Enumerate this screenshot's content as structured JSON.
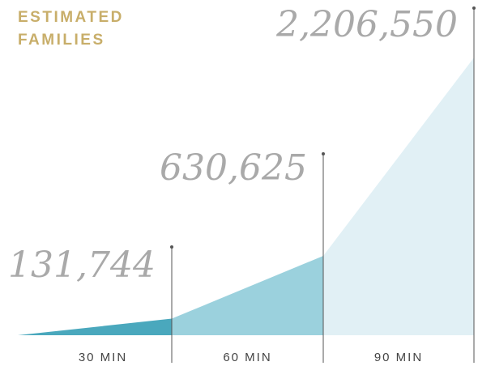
{
  "chart_data": {
    "type": "area",
    "title_lines": [
      "ESTIMATED",
      "FAMILIES"
    ],
    "categories": [
      "30 MIN",
      "60 MIN",
      "90 MIN"
    ],
    "values": [
      131744,
      630625,
      2206550
    ],
    "value_labels": [
      "131,744",
      "630,625",
      "2,206,550"
    ],
    "ylim": [
      0,
      2600000
    ],
    "legend": "none",
    "grid": false
  },
  "colors": {
    "band_30": "#4aa8bd",
    "band_60": "#9bd1dd",
    "band_90": "#e1f0f5",
    "title": "#c8ae6a",
    "value_labels": "#a9a9a9",
    "ticks": "#444444",
    "markers": "#555555"
  }
}
